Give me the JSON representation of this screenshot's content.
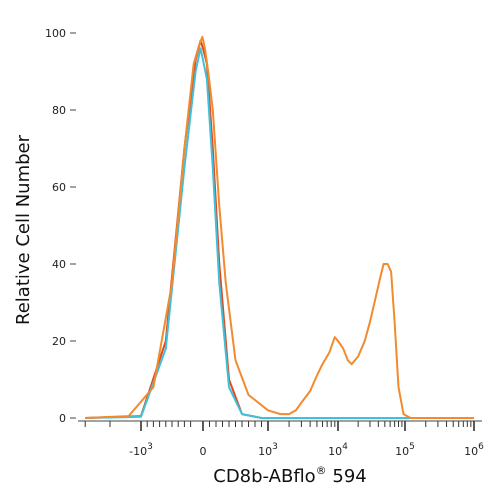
{
  "chart_data": {
    "type": "line",
    "title": "",
    "xlabel": "CD8b-ABflo",
    "xlabel_superscript": "®",
    "xlabel_suffix": " 594",
    "ylabel": "Relative Cell Number",
    "ylim": [
      0,
      100
    ],
    "y_ticks": [
      "0",
      "20",
      "40",
      "60",
      "80",
      "100"
    ],
    "x_scale": "biexponential",
    "x_ticks": [
      {
        "base": "-10",
        "exp": "3"
      },
      {
        "base": "0",
        "exp": ""
      },
      {
        "base": "10",
        "exp": "3"
      },
      {
        "base": "10",
        "exp": "4"
      },
      {
        "base": "10",
        "exp": "5"
      },
      {
        "base": "10",
        "exp": "6"
      }
    ],
    "grid": false,
    "legend": "none",
    "series": [
      {
        "color": "#e04a20",
        "points": [
          [
            -1900,
            0
          ],
          [
            -1000,
            0.5
          ],
          [
            -600,
            20
          ],
          [
            -300,
            70
          ],
          [
            -120,
            93
          ],
          [
            -40,
            98
          ],
          [
            0,
            96
          ],
          [
            60,
            92
          ],
          [
            150,
            70
          ],
          [
            250,
            40
          ],
          [
            400,
            10
          ],
          [
            600,
            1
          ],
          [
            900,
            0
          ],
          [
            2000,
            0
          ]
        ]
      },
      {
        "color": "#3ec1dc",
        "points": [
          [
            -1900,
            0
          ],
          [
            -1000,
            0.3
          ],
          [
            -600,
            18
          ],
          [
            -300,
            65
          ],
          [
            -120,
            90
          ],
          [
            -40,
            96
          ],
          [
            0,
            93
          ],
          [
            60,
            88
          ],
          [
            150,
            65
          ],
          [
            250,
            35
          ],
          [
            400,
            8
          ],
          [
            600,
            1
          ],
          [
            900,
            0
          ],
          [
            20000,
            0
          ],
          [
            1000000,
            0
          ]
        ]
      },
      {
        "color": "#f28a2e",
        "points": [
          [
            -1900,
            0
          ],
          [
            -1200,
            0.5
          ],
          [
            -800,
            8
          ],
          [
            -500,
            35
          ],
          [
            -300,
            70
          ],
          [
            -150,
            92
          ],
          [
            -60,
            97
          ],
          [
            -10,
            99
          ],
          [
            30,
            96
          ],
          [
            80,
            90
          ],
          [
            150,
            80
          ],
          [
            250,
            55
          ],
          [
            350,
            35
          ],
          [
            500,
            15
          ],
          [
            700,
            6
          ],
          [
            1000,
            2
          ],
          [
            1500,
            1
          ],
          [
            2000,
            1
          ],
          [
            2500,
            2
          ],
          [
            3000,
            4
          ],
          [
            4000,
            7
          ],
          [
            5000,
            11
          ],
          [
            6000,
            14
          ],
          [
            7500,
            17
          ],
          [
            9000,
            21
          ],
          [
            10000,
            20
          ],
          [
            12000,
            18
          ],
          [
            14000,
            15
          ],
          [
            16000,
            14
          ],
          [
            20000,
            16
          ],
          [
            25000,
            20
          ],
          [
            30000,
            25
          ],
          [
            35000,
            30
          ],
          [
            42000,
            36
          ],
          [
            48000,
            40
          ],
          [
            55000,
            40
          ],
          [
            62000,
            38
          ],
          [
            70000,
            25
          ],
          [
            80000,
            8
          ],
          [
            95000,
            1
          ],
          [
            120000,
            0
          ],
          [
            1000000,
            0
          ]
        ]
      }
    ]
  }
}
